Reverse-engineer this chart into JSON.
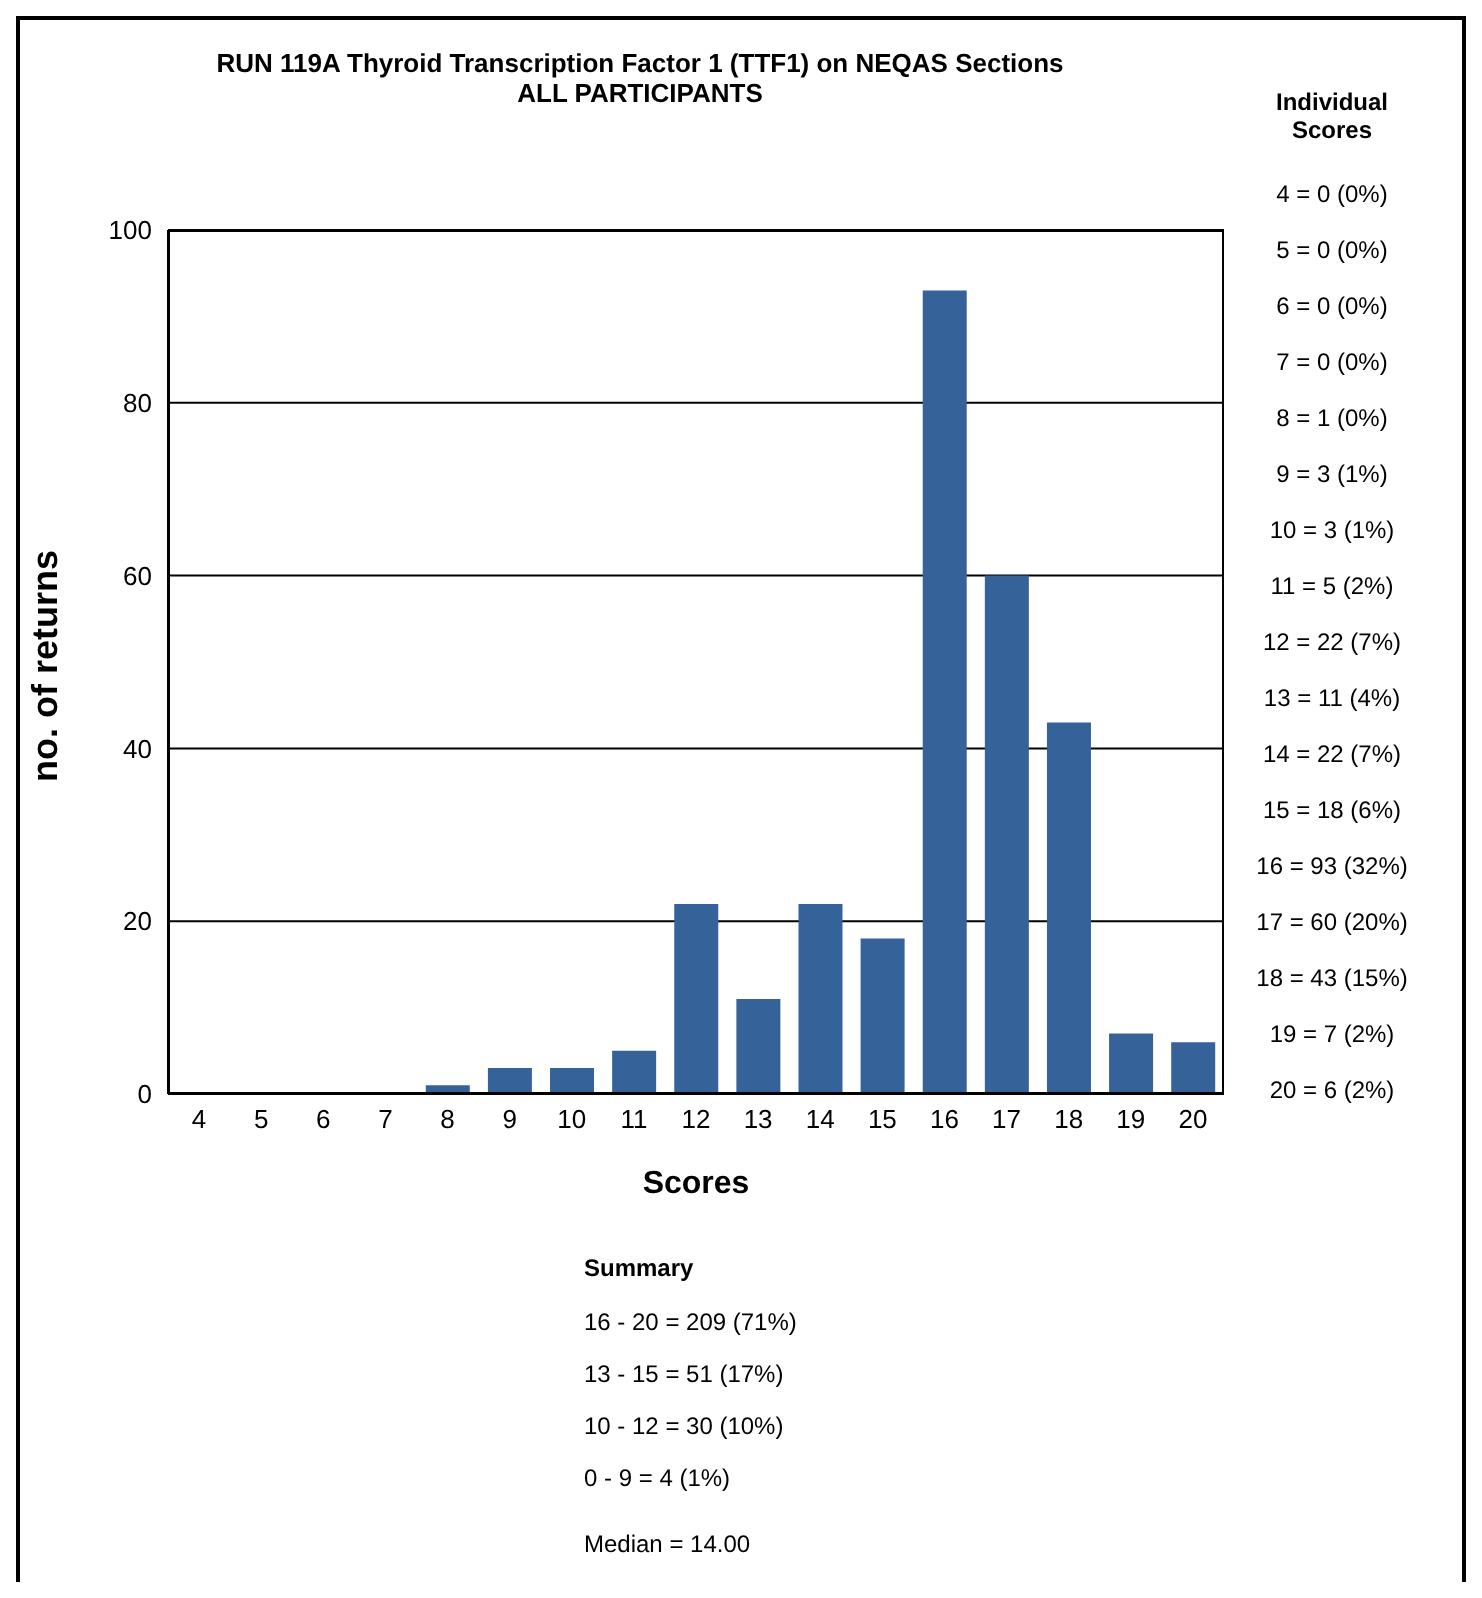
{
  "chart_data": {
    "type": "bar",
    "title": "RUN 119A Thyroid Transcription Factor 1 (TTF1) on NEQAS Sections",
    "subtitle": "ALL PARTICIPANTS",
    "xlabel": "Scores",
    "ylabel": "no. of returns",
    "categories": [
      "4",
      "5",
      "6",
      "7",
      "8",
      "9",
      "10",
      "11",
      "12",
      "13",
      "14",
      "15",
      "16",
      "17",
      "18",
      "19",
      "20"
    ],
    "values": [
      0,
      0,
      0,
      0,
      1,
      3,
      3,
      5,
      22,
      11,
      22,
      18,
      93,
      60,
      43,
      7,
      6
    ],
    "color": "#36629a",
    "ylim": [
      0,
      100
    ],
    "yticks": [
      0,
      20,
      40,
      60,
      80,
      100
    ],
    "grid": "y",
    "annotations": [
      "Individual Scores",
      "4 = 0 (0%)",
      "5 = 0 (0%)",
      "6 = 0 (0%)",
      "7 = 0 (0%)",
      "8 = 1 (0%)",
      "9 = 3 (1%)",
      "10 = 3 (1%)",
      "11 = 5 (2%)",
      "12 = 22 (7%)",
      "13 = 11 (4%)",
      "14 = 22 (7%)",
      "15 = 18 (6%)",
      "16 = 93 (32%)",
      "17 = 60 (20%)",
      "18 = 43 (15%)",
      "19 = 7 (2%)",
      "20 = 6 (2%)",
      "Summary",
      "16 - 20 = 209 (71%)",
      "13 - 15 = 51 (17%)",
      "10 - 12 = 30 (10%)",
      "0 - 9 = 4 (1%)",
      "Median = 14.00"
    ]
  }
}
